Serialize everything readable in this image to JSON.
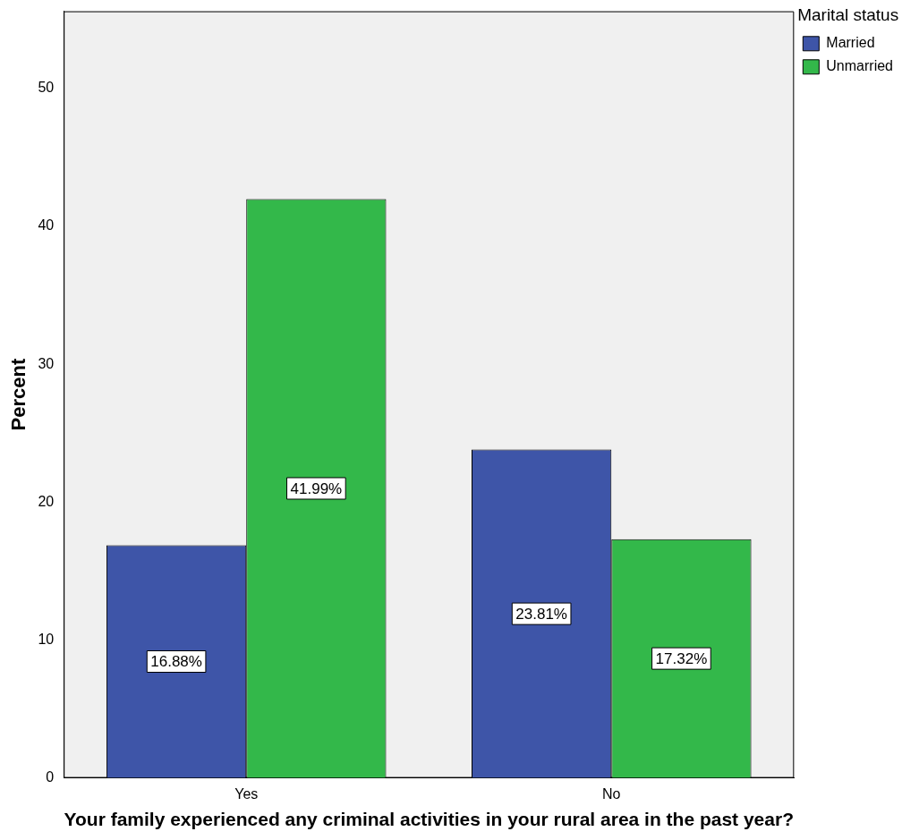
{
  "chart_data": {
    "type": "bar",
    "xlabel": "Your family experienced any criminal activities in your rural area in the past year?",
    "ylabel": "Percent",
    "legend_title": "Marital status",
    "categories": [
      "Yes",
      "No"
    ],
    "series": [
      {
        "name": "Married",
        "color": "#3e55a8",
        "values": [
          16.88,
          23.81
        ],
        "value_labels": [
          "16.88%",
          "23.81%"
        ]
      },
      {
        "name": "Unmarried",
        "color": "#33b84a",
        "values": [
          41.99,
          17.32
        ],
        "value_labels": [
          "41.99%",
          "17.32%"
        ]
      }
    ],
    "ylim": [
      0,
      55.6
    ],
    "yticks": [
      0,
      10,
      20,
      30,
      40,
      50
    ],
    "grid": false,
    "legend": "top right"
  }
}
